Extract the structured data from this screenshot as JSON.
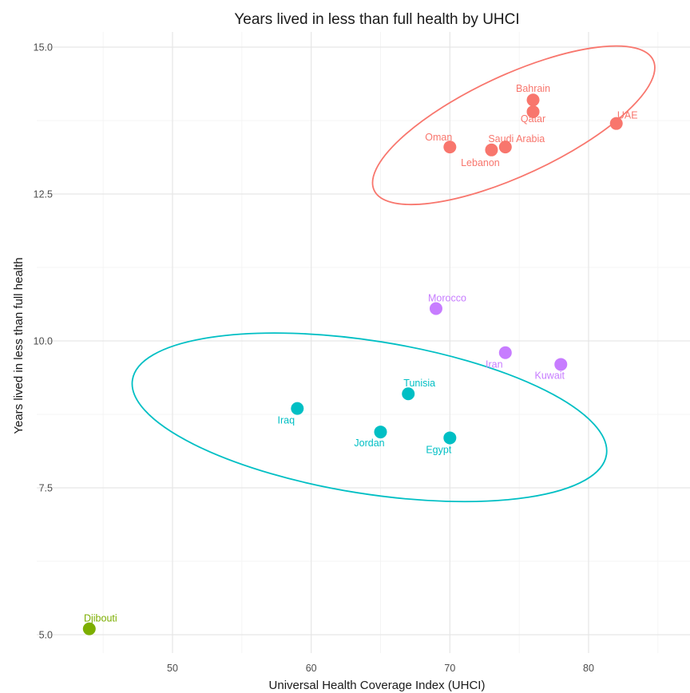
{
  "chart_data": {
    "type": "scatter",
    "title": "Years lived in less than full health by UHCI",
    "xlabel": "Universal Health Coverage Index (UHCI)",
    "ylabel": "Years lived in less than full health",
    "xlim": [
      43,
      86
    ],
    "ylim": [
      4.75,
      15.2
    ],
    "xticks": [
      50,
      60,
      70,
      80
    ],
    "xtick_labels": [
      "50",
      "60",
      "70",
      "80"
    ],
    "yticks": [
      5.0,
      7.5,
      10.0,
      12.5,
      15.0
    ],
    "ytick_labels": [
      "5.0",
      "7.5",
      "10.0",
      "12.5",
      "15.0"
    ],
    "grid": true,
    "legend": "none",
    "colors": {
      "red": "#f8766d",
      "green": "#7cae00",
      "teal": "#00bfc4",
      "purple": "#c77cff"
    },
    "points": [
      {
        "label": "Bahrain",
        "x": 76,
        "y": 14.1,
        "group": "red"
      },
      {
        "label": "Qatar",
        "x": 76,
        "y": 13.9,
        "group": "red"
      },
      {
        "label": "UAE",
        "x": 82,
        "y": 13.7,
        "group": "red"
      },
      {
        "label": "Oman",
        "x": 70,
        "y": 13.3,
        "group": "red"
      },
      {
        "label": "Saudi Arabia",
        "x": 74,
        "y": 13.3,
        "group": "red"
      },
      {
        "label": "Lebanon",
        "x": 73,
        "y": 13.25,
        "group": "red"
      },
      {
        "label": "Morocco",
        "x": 69,
        "y": 10.55,
        "group": "purple"
      },
      {
        "label": "Iran",
        "x": 74,
        "y": 9.8,
        "group": "purple"
      },
      {
        "label": "Kuwait",
        "x": 78,
        "y": 9.6,
        "group": "purple"
      },
      {
        "label": "Tunisia",
        "x": 67,
        "y": 9.1,
        "group": "teal"
      },
      {
        "label": "Iraq",
        "x": 59,
        "y": 8.85,
        "group": "teal"
      },
      {
        "label": "Jordan",
        "x": 65,
        "y": 8.45,
        "group": "teal"
      },
      {
        "label": "Egypt",
        "x": 70,
        "y": 8.35,
        "group": "teal"
      },
      {
        "label": "Djibouti",
        "x": 44,
        "y": 5.1,
        "group": "green"
      }
    ],
    "ellipses": [
      {
        "group": "red",
        "cx": 74.6,
        "cy": 13.67,
        "rx": 11.1,
        "ry": 0.85,
        "angle": -25
      },
      {
        "group": "teal",
        "cx": 64.2,
        "cy": 8.7,
        "rx": 17.3,
        "ry": 1.3,
        "angle": 9
      }
    ]
  }
}
